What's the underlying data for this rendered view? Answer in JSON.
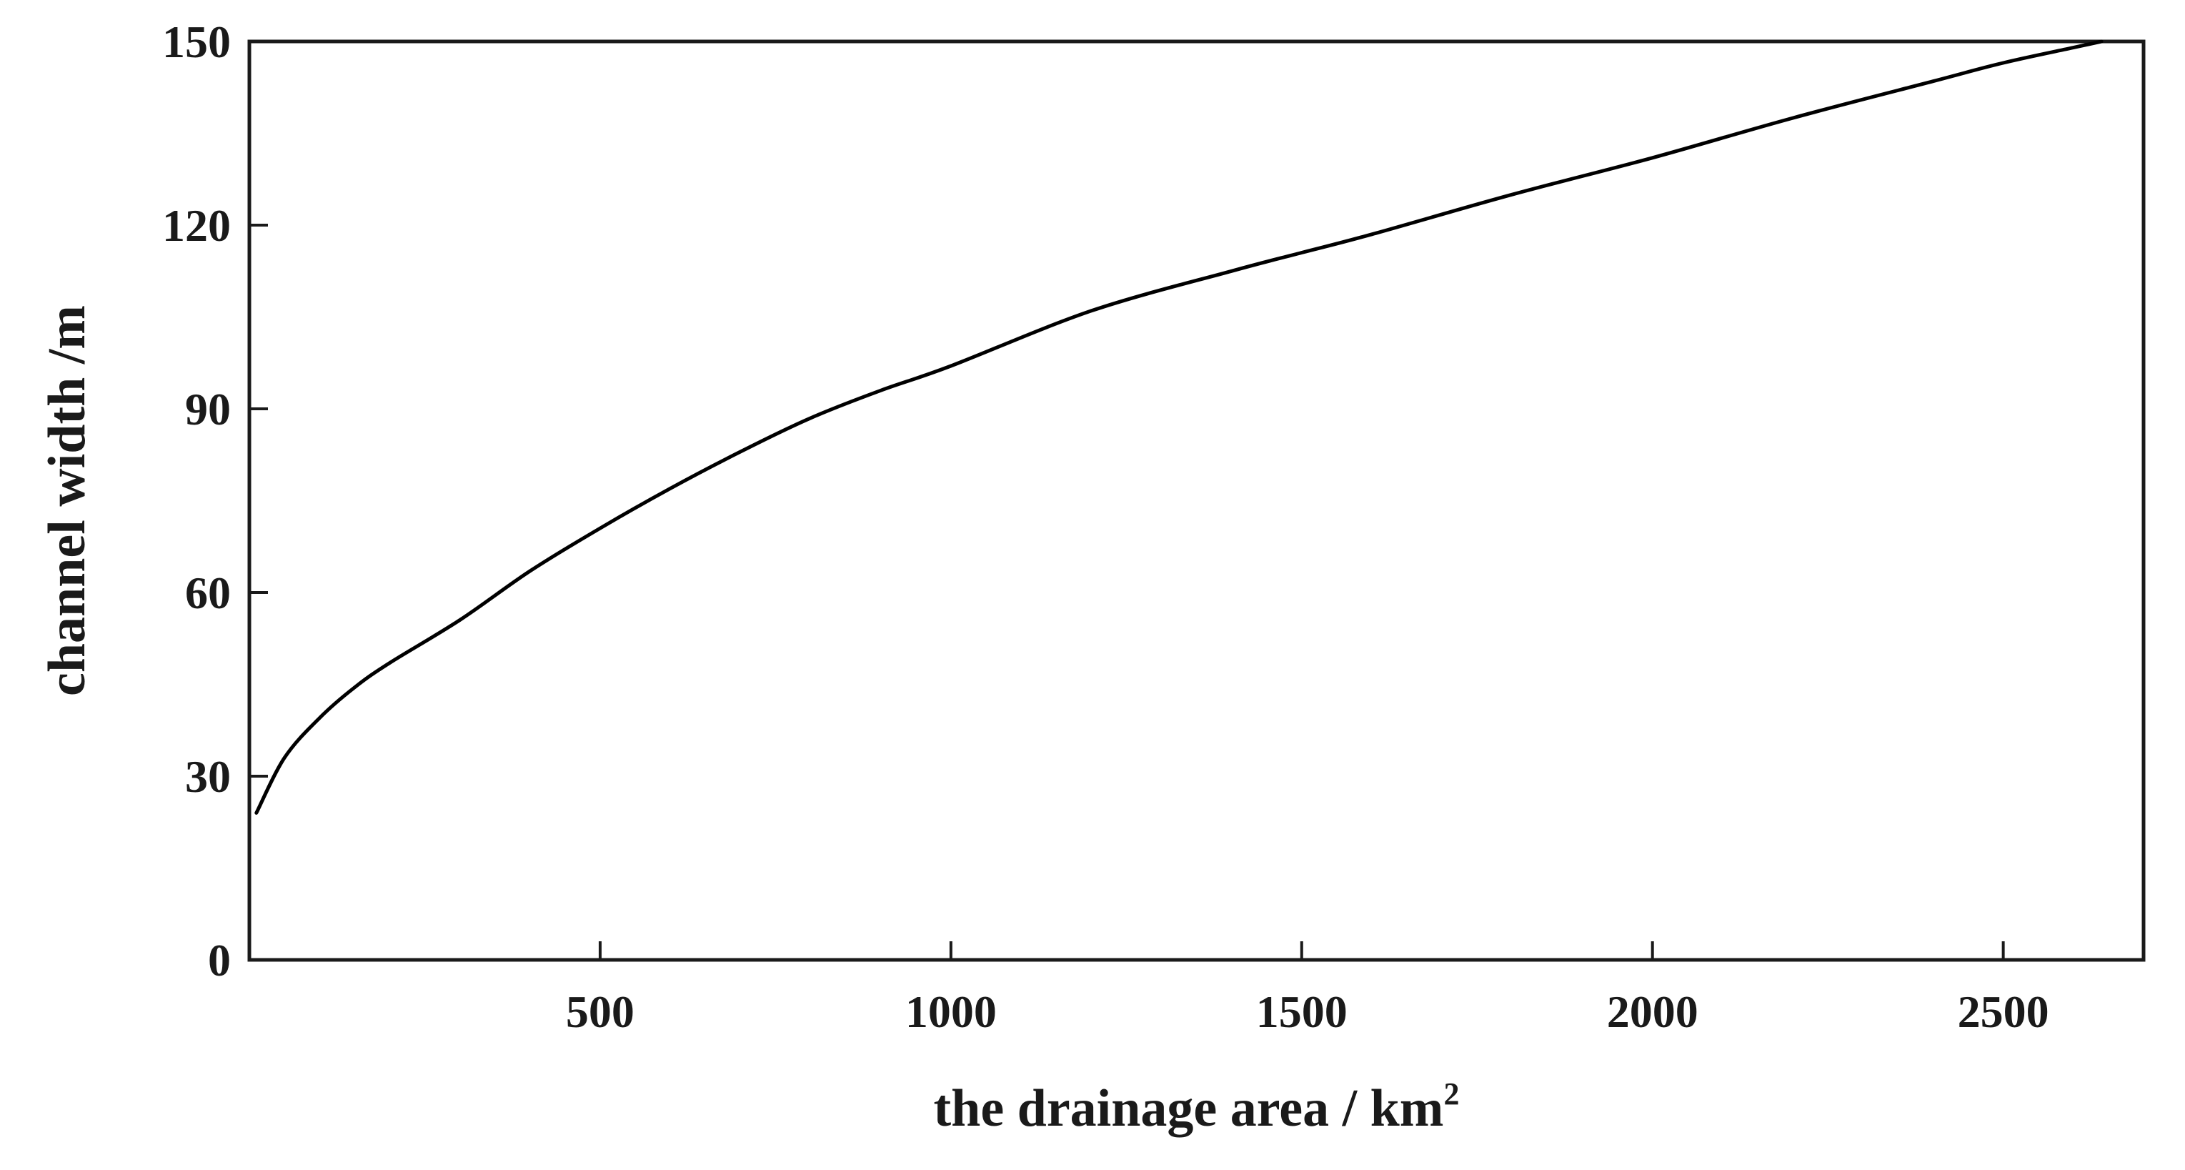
{
  "chart_data": {
    "type": "line",
    "title": "",
    "xlabel": "the drainage area / km",
    "xlabel_superscript": "2",
    "ylabel": "channel width /m",
    "xlim": [
      0,
      2700
    ],
    "ylim": [
      0,
      150
    ],
    "x_ticks": [
      500,
      1000,
      1500,
      2000,
      2500
    ],
    "y_ticks": [
      0,
      30,
      60,
      90,
      120,
      150
    ],
    "grid": false,
    "legend": "none",
    "series": [
      {
        "color": "#000000",
        "x": [
          10,
          50,
          100,
          150,
          200,
          300,
          400,
          500,
          600,
          700,
          800,
          900,
          1000,
          1200,
          1400,
          1500,
          1600,
          1800,
          2000,
          2200,
          2400,
          2500,
          2600,
          2640
        ],
        "y": [
          24,
          33,
          39.5,
          44.5,
          48.5,
          55.5,
          63.5,
          70.5,
          77,
          83,
          88.5,
          93,
          97,
          106,
          112.5,
          115.5,
          118.5,
          125,
          131,
          137.5,
          143.5,
          146.5,
          149,
          150
        ]
      }
    ]
  }
}
